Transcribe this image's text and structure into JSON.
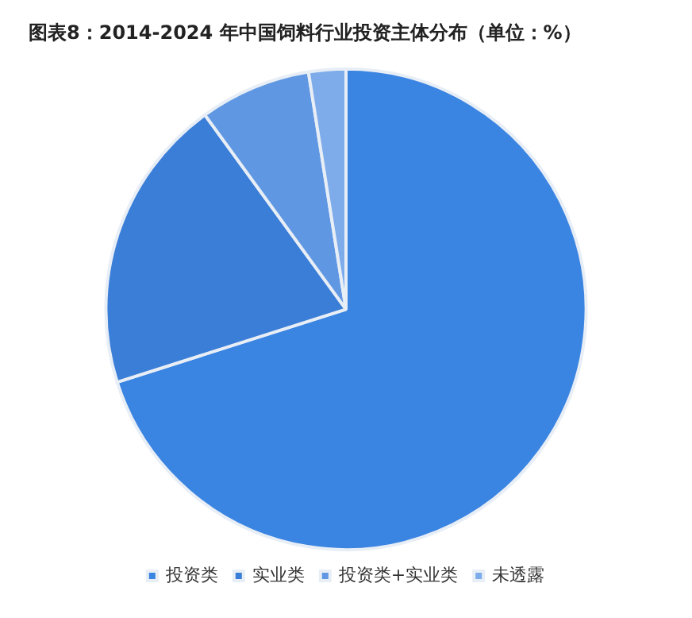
{
  "chart_data": {
    "type": "pie",
    "title": "图表8：2014-2024 年中国饲料行业投资主体分布（单位：%）",
    "categories": [
      "投资类",
      "实业类",
      "投资类+实业类",
      "未透露"
    ],
    "values": [
      70.1,
      19.9,
      7.5,
      2.5
    ],
    "colors": [
      "#3a84e2",
      "#3a7ed8",
      "#5f97e3",
      "#7eaceb"
    ],
    "legend": "bottom"
  }
}
